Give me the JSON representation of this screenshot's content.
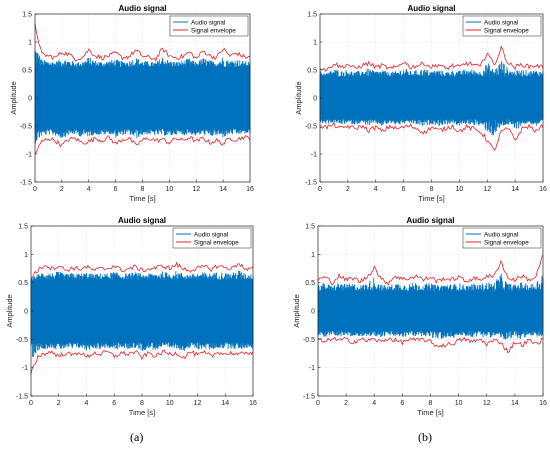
{
  "figure_captions": [
    "(a)",
    "(b)"
  ],
  "chart_data": [
    {
      "type": "line",
      "title": "Audio signal",
      "xlabel": "Time [s]",
      "ylabel": "Amplitude",
      "xlim": [
        0,
        16
      ],
      "ylim": [
        -1.5,
        1.5
      ],
      "x_ticks": [
        "0",
        "2",
        "4",
        "6",
        "8",
        "10",
        "12",
        "14",
        "16"
      ],
      "y_ticks": [
        "-1.5",
        "-1",
        "-0.5",
        "0",
        "0.5",
        "1",
        "1.5"
      ],
      "grid": true,
      "legend_position": "top-right",
      "series": [
        {
          "name": "Audio signal",
          "color": "#0072bd",
          "fill_band": {
            "x": [
              0,
              16
            ],
            "upper": 0.55,
            "lower": -0.55
          }
        },
        {
          "name": "Signal envelope",
          "color": "#e8222a",
          "x": [
            0,
            0.5,
            1,
            1.5,
            2,
            2.5,
            3,
            3.5,
            4,
            4.5,
            5,
            5.5,
            6,
            6.5,
            7,
            7.5,
            8,
            8.5,
            9,
            9.5,
            10,
            10.5,
            11,
            11.5,
            12,
            12.5,
            13,
            13.5,
            14,
            14.5,
            15,
            15.5,
            16
          ],
          "upper": [
            1.3,
            0.78,
            0.75,
            0.72,
            0.82,
            0.78,
            0.7,
            0.72,
            0.86,
            0.75,
            0.72,
            0.75,
            0.8,
            0.72,
            0.74,
            0.85,
            0.75,
            0.72,
            0.7,
            0.88,
            0.75,
            0.72,
            0.74,
            0.82,
            0.7,
            0.84,
            0.76,
            0.72,
            0.88,
            0.75,
            0.8,
            0.74,
            0.72
          ],
          "lower": [
            -1.0,
            -0.78,
            -0.72,
            -0.76,
            -0.85,
            -0.74,
            -0.72,
            -0.8,
            -0.78,
            -0.72,
            -0.76,
            -0.7,
            -0.82,
            -0.74,
            -0.72,
            -0.85,
            -0.75,
            -0.72,
            -0.76,
            -0.74,
            -0.8,
            -0.72,
            -0.76,
            -0.7,
            -0.78,
            -0.72,
            -0.8,
            -0.76,
            -0.82,
            -0.72,
            -0.74,
            -0.7,
            -0.72
          ]
        }
      ]
    },
    {
      "type": "line",
      "title": "Audio signal",
      "xlabel": "Time [s]",
      "ylabel": "Amplitude",
      "xlim": [
        0,
        16
      ],
      "ylim": [
        -1.5,
        1.5
      ],
      "x_ticks": [
        "0",
        "2",
        "4",
        "6",
        "8",
        "10",
        "12",
        "14",
        "16"
      ],
      "y_ticks": [
        "-1.5",
        "-1",
        "-0.5",
        "0",
        "0.5",
        "1",
        "1.5"
      ],
      "grid": true,
      "legend_position": "top-right",
      "series": [
        {
          "name": "Audio signal",
          "color": "#0072bd",
          "fill_band": {
            "x": [
              0,
              16
            ],
            "upper": 0.38,
            "lower": -0.38
          }
        },
        {
          "name": "Signal envelope",
          "color": "#e8222a",
          "x": [
            0,
            0.5,
            1,
            1.5,
            2,
            2.5,
            3,
            3.5,
            4,
            4.5,
            5,
            5.5,
            6,
            6.5,
            7,
            7.5,
            8,
            8.5,
            9,
            9.5,
            10,
            10.5,
            11,
            11.5,
            12,
            12.5,
            13,
            13.5,
            14,
            14.5,
            15,
            15.5,
            16
          ],
          "upper": [
            0.55,
            0.5,
            0.62,
            0.55,
            0.6,
            0.52,
            0.58,
            0.62,
            0.55,
            0.58,
            0.52,
            0.55,
            0.65,
            0.55,
            0.58,
            0.62,
            0.55,
            0.6,
            0.52,
            0.58,
            0.55,
            0.62,
            0.6,
            0.55,
            0.82,
            0.58,
            0.9,
            0.62,
            0.55,
            0.6,
            0.56,
            0.58,
            0.55
          ],
          "lower": [
            -0.5,
            -0.52,
            -0.48,
            -0.55,
            -0.5,
            -0.55,
            -0.5,
            -0.58,
            -0.52,
            -0.6,
            -0.5,
            -0.55,
            -0.52,
            -0.5,
            -0.55,
            -0.62,
            -0.52,
            -0.58,
            -0.55,
            -0.5,
            -0.6,
            -0.52,
            -0.55,
            -0.6,
            -0.75,
            -0.95,
            -0.6,
            -0.55,
            -0.75,
            -0.55,
            -0.5,
            -0.6,
            -0.5
          ]
        }
      ]
    },
    {
      "type": "line",
      "title": "Audio signal",
      "xlabel": "Time [s]",
      "ylabel": "Amplitude",
      "xlim": [
        0,
        16
      ],
      "ylim": [
        -1.5,
        1.5
      ],
      "x_ticks": [
        "0",
        "2",
        "4",
        "6",
        "8",
        "10",
        "12",
        "14",
        "16"
      ],
      "y_ticks": [
        "-1.5",
        "-1",
        "-0.5",
        "0",
        "0.5",
        "1",
        "1.5"
      ],
      "grid": true,
      "legend_position": "top-right",
      "series": [
        {
          "name": "Audio signal",
          "color": "#0072bd",
          "fill_band": {
            "x": [
              0,
              16
            ],
            "upper": 0.55,
            "lower": -0.55
          }
        },
        {
          "name": "Signal envelope",
          "color": "#e8222a",
          "x": [
            0,
            0.5,
            1,
            1.5,
            2,
            2.5,
            3,
            3.5,
            4,
            4.5,
            5,
            5.5,
            6,
            6.5,
            7,
            7.5,
            8,
            8.5,
            9,
            9.5,
            10,
            10.5,
            11,
            11.5,
            12,
            12.5,
            13,
            13.5,
            14,
            14.5,
            15,
            15.5,
            16
          ],
          "upper": [
            0.6,
            0.72,
            0.82,
            0.75,
            0.8,
            0.72,
            0.76,
            0.74,
            0.78,
            0.72,
            0.74,
            0.75,
            0.8,
            0.72,
            0.74,
            0.78,
            0.72,
            0.74,
            0.76,
            0.8,
            0.75,
            0.82,
            0.74,
            0.72,
            0.75,
            0.78,
            0.74,
            0.8,
            0.76,
            0.75,
            0.85,
            0.72,
            0.75
          ],
          "lower": [
            -1.1,
            -0.8,
            -0.75,
            -0.72,
            -0.8,
            -0.74,
            -0.78,
            -0.72,
            -0.82,
            -0.74,
            -0.76,
            -0.72,
            -0.8,
            -0.74,
            -0.76,
            -0.72,
            -0.82,
            -0.74,
            -0.8,
            -0.72,
            -0.76,
            -0.74,
            -0.82,
            -0.72,
            -0.78,
            -0.74,
            -0.8,
            -0.72,
            -0.76,
            -0.74,
            -0.78,
            -0.72,
            -0.75
          ]
        }
      ]
    },
    {
      "type": "line",
      "title": "Audio signal",
      "xlabel": "Time [s]",
      "ylabel": "Amplitude",
      "xlim": [
        0,
        16
      ],
      "ylim": [
        -1.5,
        1.5
      ],
      "x_ticks": [
        "0",
        "2",
        "4",
        "6",
        "8",
        "10",
        "12",
        "14",
        "16"
      ],
      "y_ticks": [
        "-1.5",
        "-1",
        "-0.5",
        "0",
        "0.5",
        "1",
        "1.5"
      ],
      "grid": true,
      "legend_position": "top-right",
      "series": [
        {
          "name": "Audio signal",
          "color": "#0072bd",
          "fill_band": {
            "x": [
              0,
              16
            ],
            "upper": 0.35,
            "lower": -0.35
          }
        },
        {
          "name": "Signal envelope",
          "color": "#e8222a",
          "x": [
            0,
            0.5,
            1,
            1.5,
            2,
            2.5,
            3,
            3.5,
            4,
            4.5,
            5,
            5.5,
            6,
            6.5,
            7,
            7.5,
            8,
            8.5,
            9,
            9.5,
            10,
            10.5,
            11,
            11.5,
            12,
            12.5,
            13,
            13.5,
            14,
            14.5,
            15,
            15.5,
            16
          ],
          "upper": [
            0.55,
            0.6,
            0.5,
            0.62,
            0.55,
            0.58,
            0.52,
            0.6,
            0.78,
            0.55,
            0.5,
            0.62,
            0.56,
            0.58,
            0.62,
            0.55,
            0.6,
            0.52,
            0.58,
            0.55,
            0.6,
            0.52,
            0.58,
            0.55,
            0.62,
            0.6,
            0.88,
            0.58,
            0.55,
            0.62,
            0.55,
            0.6,
            1.0
          ],
          "lower": [
            -0.5,
            -0.55,
            -0.48,
            -0.52,
            -0.5,
            -0.55,
            -0.5,
            -0.52,
            -0.5,
            -0.55,
            -0.48,
            -0.52,
            -0.55,
            -0.5,
            -0.52,
            -0.5,
            -0.55,
            -0.62,
            -0.6,
            -0.58,
            -0.52,
            -0.5,
            -0.55,
            -0.5,
            -0.58,
            -0.52,
            -0.55,
            -0.72,
            -0.55,
            -0.6,
            -0.52,
            -0.58,
            -0.5
          ]
        }
      ]
    }
  ]
}
